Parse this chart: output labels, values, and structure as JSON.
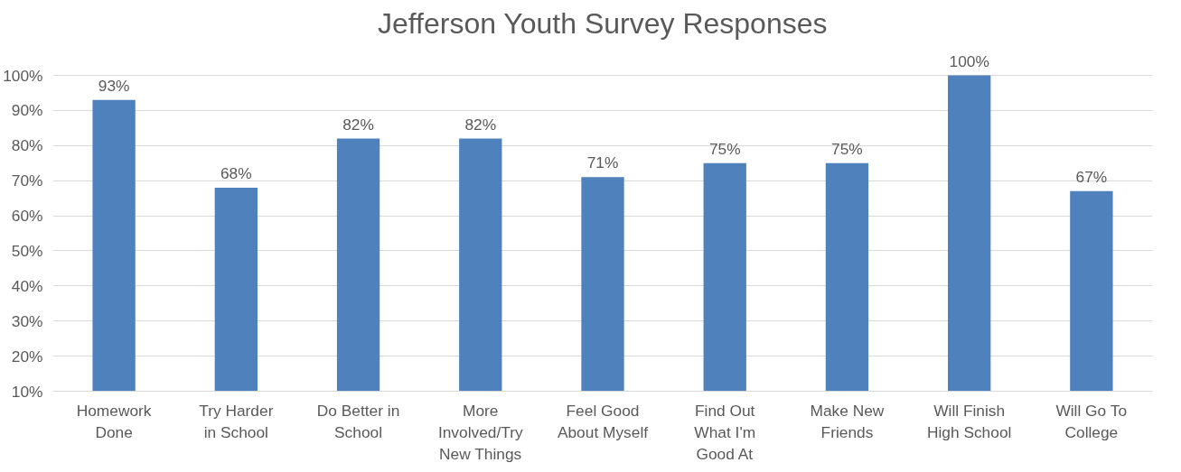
{
  "chart_data": {
    "type": "bar",
    "title": "Jefferson Youth Survey Responses",
    "categories": [
      "Homework Done",
      "Try Harder in School",
      "Do Better in School",
      "More Involved/Try New Things",
      "Feel Good About Myself",
      "Find Out What I'm Good At",
      "Make New Friends",
      "Will Finish High School",
      "Will Go To College"
    ],
    "values": [
      93,
      68,
      82,
      82,
      71,
      75,
      75,
      100,
      67
    ],
    "value_labels": [
      "93%",
      "68%",
      "82%",
      "82%",
      "71%",
      "75%",
      "75%",
      "100%",
      "67%"
    ],
    "color": "#4f81bd",
    "ylim": [
      10,
      100
    ],
    "yticks": [
      {
        "value": 10,
        "label": "10%"
      },
      {
        "value": 20,
        "label": "20%"
      },
      {
        "value": 30,
        "label": "30%"
      },
      {
        "value": 40,
        "label": "40%"
      },
      {
        "value": 50,
        "label": "50%"
      },
      {
        "value": 60,
        "label": "60%"
      },
      {
        "value": 70,
        "label": "70%"
      },
      {
        "value": 80,
        "label": "80%"
      },
      {
        "value": 90,
        "label": "90%"
      },
      {
        "value": 100,
        "label": "100%"
      }
    ],
    "grid": "y"
  }
}
